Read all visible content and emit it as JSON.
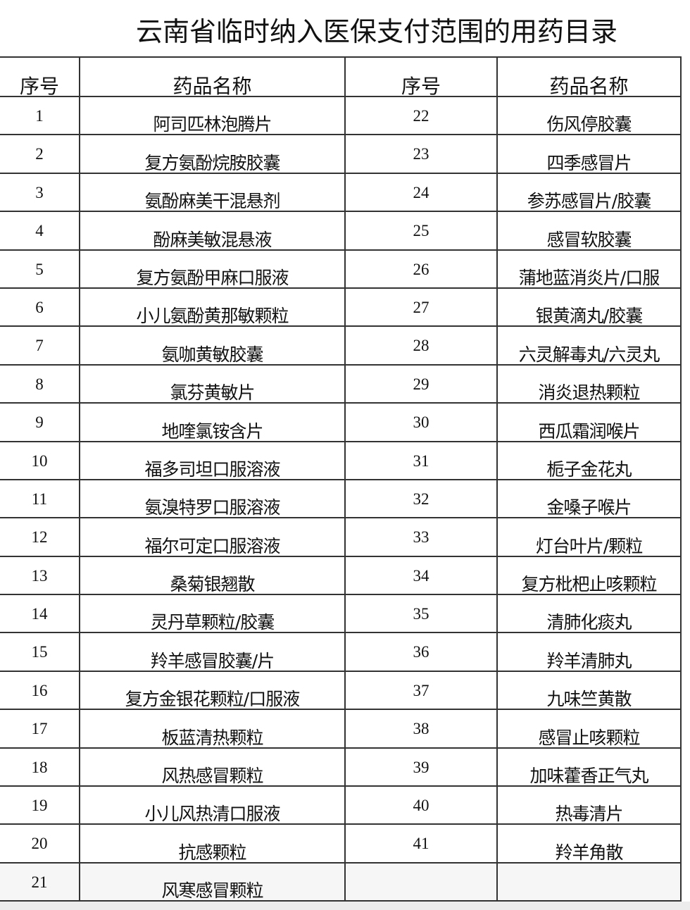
{
  "title": "云南省临时纳入医保支付范围的用药目录",
  "headers": [
    "序号",
    "药品名称",
    "序号",
    "药品名称"
  ],
  "rows": [
    {
      "no_left": "1",
      "name_left": "阿司匹林泡腾片",
      "no_right": "22",
      "name_right": "伤风停胶囊"
    },
    {
      "no_left": "2",
      "name_left": "复方氨酚烷胺胶囊",
      "no_right": "23",
      "name_right": "四季感冒片"
    },
    {
      "no_left": "3",
      "name_left": "氨酚麻美干混悬剂",
      "no_right": "24",
      "name_right": "参苏感冒片/胶囊"
    },
    {
      "no_left": "4",
      "name_left": "酚麻美敏混悬液",
      "no_right": "25",
      "name_right": "感冒软胶囊"
    },
    {
      "no_left": "5",
      "name_left": "复方氨酚甲麻口服液",
      "no_right": "26",
      "name_right": "蒲地蓝消炎片/口服"
    },
    {
      "no_left": "6",
      "name_left": "小儿氨酚黄那敏颗粒",
      "no_right": "27",
      "name_right": "银黄滴丸/胶囊"
    },
    {
      "no_left": "7",
      "name_left": "氨咖黄敏胶囊",
      "no_right": "28",
      "name_right": "六灵解毒丸/六灵丸"
    },
    {
      "no_left": "8",
      "name_left": "氯芬黄敏片",
      "no_right": "29",
      "name_right": "消炎退热颗粒"
    },
    {
      "no_left": "9",
      "name_left": "地喹氯铵含片",
      "no_right": "30",
      "name_right": "西瓜霜润喉片"
    },
    {
      "no_left": "10",
      "name_left": "福多司坦口服溶液",
      "no_right": "31",
      "name_right": "栀子金花丸"
    },
    {
      "no_left": "11",
      "name_left": "氨溴特罗口服溶液",
      "no_right": "32",
      "name_right": "金嗓子喉片"
    },
    {
      "no_left": "12",
      "name_left": "福尔可定口服溶液",
      "no_right": "33",
      "name_right": "灯台叶片/颗粒"
    },
    {
      "no_left": "13",
      "name_left": "桑菊银翘散",
      "no_right": "34",
      "name_right": "复方枇杷止咳颗粒"
    },
    {
      "no_left": "14",
      "name_left": "灵丹草颗粒/胶囊",
      "no_right": "35",
      "name_right": "清肺化痰丸"
    },
    {
      "no_left": "15",
      "name_left": "羚羊感冒胶囊/片",
      "no_right": "36",
      "name_right": "羚羊清肺丸"
    },
    {
      "no_left": "16",
      "name_left": "复方金银花颗粒/口服液",
      "no_right": "37",
      "name_right": "九味竺黄散"
    },
    {
      "no_left": "17",
      "name_left": "板蓝清热颗粒",
      "no_right": "38",
      "name_right": "感冒止咳颗粒"
    },
    {
      "no_left": "18",
      "name_left": "风热感冒颗粒",
      "no_right": "39",
      "name_right": "加味藿香正气丸"
    },
    {
      "no_left": "19",
      "name_left": "小儿风热清口服液",
      "no_right": "40",
      "name_right": "热毒清片"
    },
    {
      "no_left": "20",
      "name_left": "抗感颗粒",
      "no_right": "41",
      "name_right": "羚羊角散"
    },
    {
      "no_left": "21",
      "name_left": "风寒感冒颗粒",
      "no_right": "",
      "name_right": ""
    }
  ]
}
